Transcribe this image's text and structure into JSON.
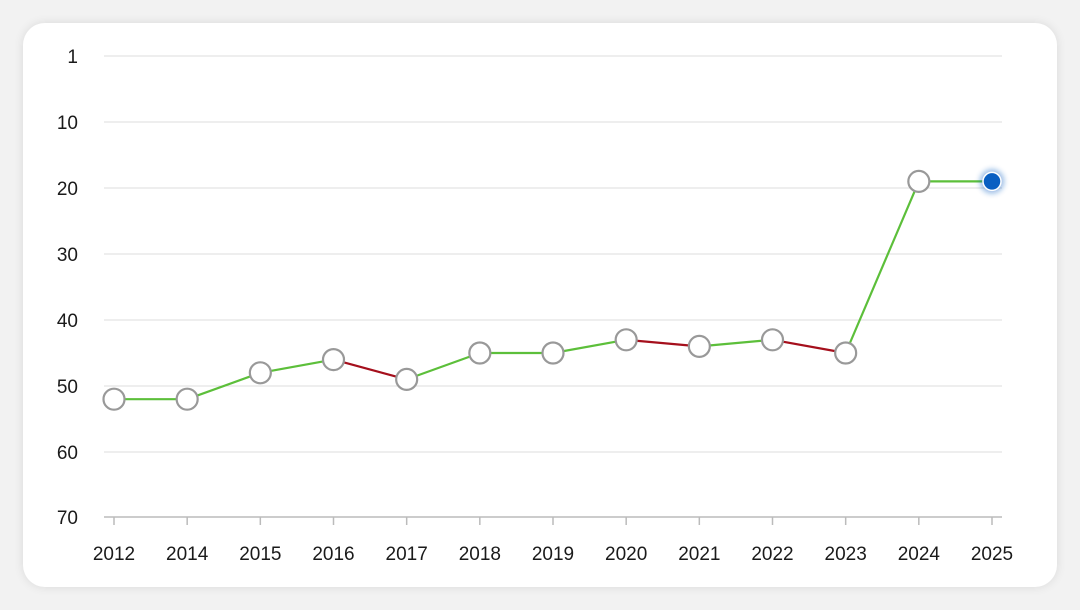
{
  "chart_data": {
    "type": "line",
    "x": [
      "2012",
      "2014",
      "2015",
      "2016",
      "2017",
      "2018",
      "2019",
      "2020",
      "2021",
      "2022",
      "2023",
      "2024",
      "2025"
    ],
    "series": [
      {
        "values": [
          52,
          52,
          48,
          46,
          49,
          45,
          45,
          43,
          44,
          43,
          45,
          19,
          19
        ]
      }
    ],
    "yticks": [
      "1",
      "10",
      "20",
      "30",
      "40",
      "50",
      "60",
      "70"
    ],
    "ylim": [
      1,
      70
    ],
    "y_inverted": true,
    "grid": true,
    "colors": {
      "improve": "#5cbf3a",
      "decline": "#a50f1c",
      "marker_stroke": "#999999",
      "marker_fill": "#ffffff",
      "highlight": "#0a5fc2",
      "grid": "#dddddd",
      "axis": "#bbbbbb"
    }
  }
}
